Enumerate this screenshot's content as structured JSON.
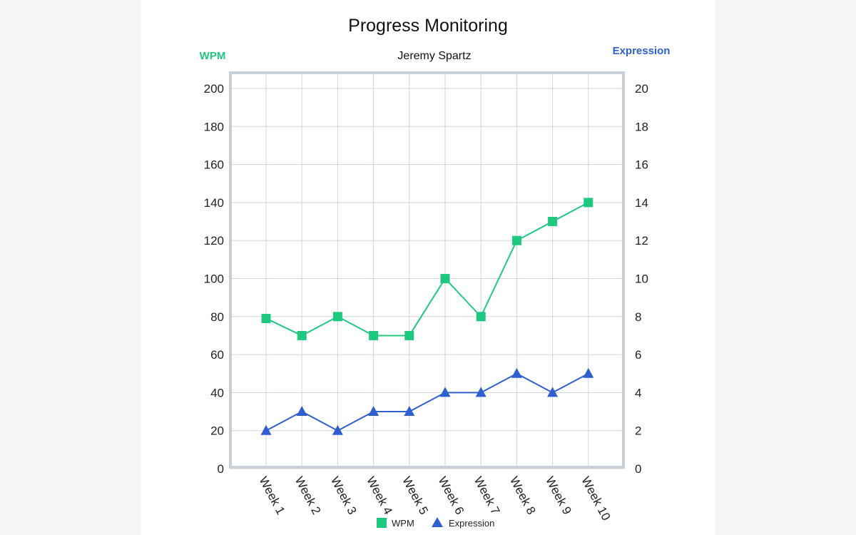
{
  "colors": {
    "wpm": "#1ec97f",
    "expression": "#2f5fcf",
    "grid": "#cfd5dc",
    "frame": "#c9cfd6"
  },
  "chart_data": {
    "type": "line",
    "title": "Progress Monitoring",
    "subtitle": "Jeremy Spartz",
    "y_left_label": "WPM",
    "y_right_label": "Expression",
    "categories": [
      "Week 1",
      "Week 2",
      "Week 3",
      "Week 4",
      "Week 5",
      "Week 6",
      "Week 7",
      "Week 8",
      "Week 9",
      "Week 10"
    ],
    "y_left_range": [
      0,
      200
    ],
    "y_left_ticks": [
      "0",
      "20",
      "40",
      "60",
      "80",
      "100",
      "120",
      "140",
      "160",
      "180",
      "200"
    ],
    "y_right_range": [
      0,
      20
    ],
    "y_right_ticks": [
      "0",
      "2",
      "4",
      "6",
      "8",
      "10",
      "12",
      "14",
      "16",
      "18",
      "20"
    ],
    "grid": true,
    "legend_position": "bottom",
    "series": [
      {
        "name": "WPM",
        "axis": "left",
        "marker": "square",
        "values": [
          79,
          70,
          80,
          70,
          70,
          100,
          80,
          120,
          130,
          140
        ]
      },
      {
        "name": "Expression",
        "axis": "right",
        "marker": "triangle",
        "values": [
          2,
          3,
          2,
          3,
          3,
          4,
          4,
          5,
          4,
          5
        ]
      }
    ]
  }
}
